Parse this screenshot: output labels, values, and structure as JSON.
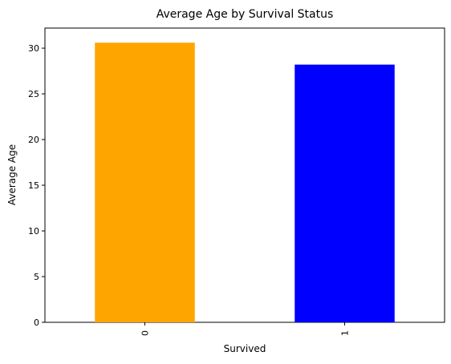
{
  "chart_data": {
    "type": "bar",
    "title": "Average Age by Survival Status",
    "xlabel": "Survived",
    "ylabel": "Average Age",
    "categories": [
      "0",
      "1"
    ],
    "values": [
      30.6,
      28.2
    ],
    "bar_colors": [
      "#FFA500",
      "#0000FF"
    ],
    "ylim": [
      0,
      32.2
    ],
    "yticks": [
      0,
      5,
      10,
      15,
      20,
      25,
      30
    ],
    "grid": false,
    "legend": "none",
    "x_tick_rotation_degrees": 90
  }
}
